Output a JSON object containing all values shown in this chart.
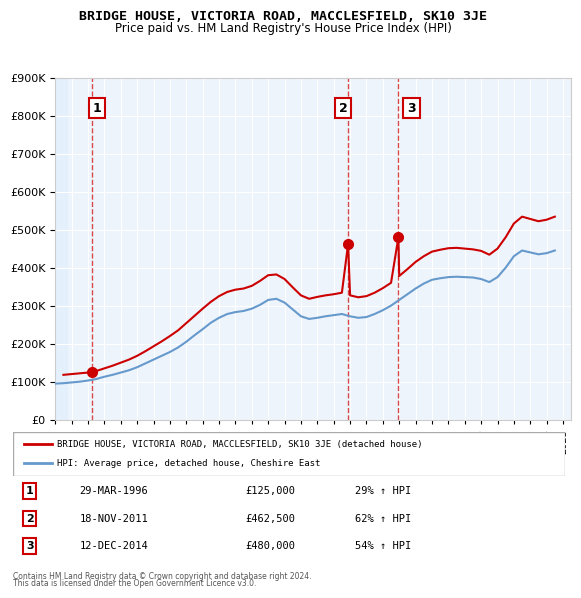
{
  "title": "BRIDGE HOUSE, VICTORIA ROAD, MACCLESFIELD, SK10 3JE",
  "subtitle": "Price paid vs. HM Land Registry's House Price Index (HPI)",
  "legend_line1": "BRIDGE HOUSE, VICTORIA ROAD, MACCLESFIELD, SK10 3JE (detached house)",
  "legend_line2": "HPI: Average price, detached house, Cheshire East",
  "footer1": "Contains HM Land Registry data © Crown copyright and database right 2024.",
  "footer2": "This data is licensed under the Open Government Licence v3.0.",
  "sale_points": [
    {
      "num": 1,
      "date": "29-MAR-1996",
      "price": 125000,
      "year": 1996.23,
      "pct": "29%",
      "dir": "↑"
    },
    {
      "num": 2,
      "date": "18-NOV-2011",
      "price": 462500,
      "year": 2011.88,
      "pct": "62%",
      "dir": "↑"
    },
    {
      "num": 3,
      "date": "12-DEC-2014",
      "price": 480000,
      "year": 2014.95,
      "pct": "54%",
      "dir": "↑"
    }
  ],
  "property_color": "#cc0000",
  "hpi_color": "#6699cc",
  "dashed_vline_color": "#cc0000",
  "background_hatch": "#ddeeff",
  "ylim": [
    0,
    900000
  ],
  "xlim_start": 1994.0,
  "xlim_end": 2025.5,
  "yticks": [
    0,
    100000,
    200000,
    300000,
    400000,
    500000,
    600000,
    700000,
    800000,
    900000
  ],
  "xticks": [
    1994,
    1995,
    1996,
    1997,
    1998,
    1999,
    2000,
    2001,
    2002,
    2003,
    2004,
    2005,
    2006,
    2007,
    2008,
    2009,
    2010,
    2011,
    2012,
    2013,
    2014,
    2015,
    2016,
    2017,
    2018,
    2019,
    2020,
    2021,
    2022,
    2023,
    2024,
    2025
  ],
  "hpi_data_x": [
    1994.0,
    1994.5,
    1995.0,
    1995.5,
    1996.0,
    1996.5,
    1997.0,
    1997.5,
    1998.0,
    1998.5,
    1999.0,
    1999.5,
    2000.0,
    2000.5,
    2001.0,
    2001.5,
    2002.0,
    2002.5,
    2003.0,
    2003.5,
    2004.0,
    2004.5,
    2005.0,
    2005.5,
    2006.0,
    2006.5,
    2007.0,
    2007.5,
    2008.0,
    2008.5,
    2009.0,
    2009.5,
    2010.0,
    2010.5,
    2011.0,
    2011.5,
    2012.0,
    2012.5,
    2013.0,
    2013.5,
    2014.0,
    2014.5,
    2015.0,
    2015.5,
    2016.0,
    2016.5,
    2017.0,
    2017.5,
    2018.0,
    2018.5,
    2019.0,
    2019.5,
    2020.0,
    2020.5,
    2021.0,
    2021.5,
    2022.0,
    2022.5,
    2023.0,
    2023.5,
    2024.0,
    2024.5
  ],
  "hpi_data_y": [
    95000,
    96000,
    98000,
    100000,
    103000,
    107000,
    113000,
    118000,
    124000,
    130000,
    138000,
    148000,
    158000,
    168000,
    178000,
    190000,
    205000,
    222000,
    238000,
    255000,
    268000,
    278000,
    283000,
    286000,
    292000,
    302000,
    315000,
    318000,
    308000,
    290000,
    272000,
    265000,
    268000,
    272000,
    275000,
    278000,
    272000,
    268000,
    270000,
    278000,
    288000,
    300000,
    315000,
    330000,
    345000,
    358000,
    368000,
    372000,
    375000,
    376000,
    375000,
    374000,
    370000,
    362000,
    375000,
    400000,
    430000,
    445000,
    440000,
    435000,
    438000,
    445000
  ],
  "property_data_x": [
    1994.5,
    1995.0,
    1995.5,
    1996.0,
    1996.23,
    1996.5,
    1997.0,
    1997.5,
    1998.0,
    1998.5,
    1999.0,
    1999.5,
    2000.0,
    2000.5,
    2001.0,
    2001.5,
    2002.0,
    2002.5,
    2003.0,
    2003.5,
    2004.0,
    2004.5,
    2005.0,
    2005.5,
    2006.0,
    2006.5,
    2007.0,
    2007.5,
    2008.0,
    2008.5,
    2009.0,
    2009.5,
    2010.0,
    2010.5,
    2011.0,
    2011.5,
    2011.88,
    2012.0,
    2012.5,
    2013.0,
    2013.5,
    2014.0,
    2014.5,
    2014.95,
    2015.0,
    2015.5,
    2016.0,
    2016.5,
    2017.0,
    2017.5,
    2018.0,
    2018.5,
    2019.0,
    2019.5,
    2020.0,
    2020.5,
    2021.0,
    2021.5,
    2022.0,
    2022.5,
    2023.0,
    2023.5,
    2024.0,
    2024.5
  ],
  "property_data_y": [
    118000,
    120000,
    122000,
    124000,
    125000,
    128000,
    135000,
    142000,
    150000,
    158000,
    168000,
    180000,
    193000,
    206000,
    220000,
    235000,
    254000,
    273000,
    292000,
    310000,
    325000,
    336000,
    342000,
    345000,
    352000,
    365000,
    380000,
    382000,
    370000,
    348000,
    327000,
    318000,
    323000,
    327000,
    330000,
    334000,
    462500,
    327000,
    322000,
    325000,
    334000,
    346000,
    360000,
    480000,
    378000,
    396000,
    415000,
    430000,
    442000,
    447000,
    451000,
    452000,
    450000,
    448000,
    444000,
    434000,
    450000,
    480000,
    516000,
    534000,
    528000,
    522000,
    526000,
    534000
  ]
}
